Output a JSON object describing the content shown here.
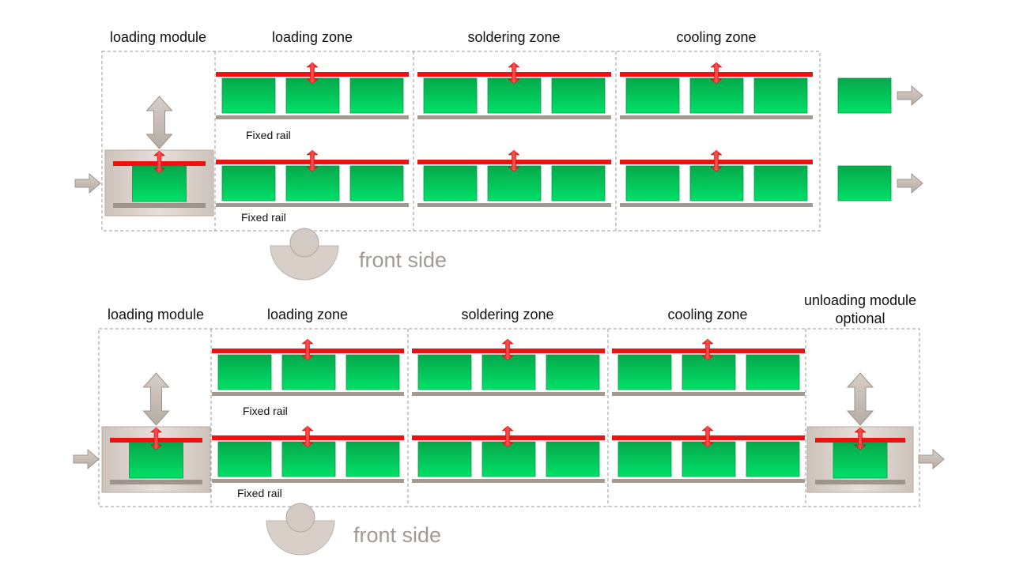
{
  "colors": {
    "pcb_green": "#00c957",
    "rail_red": "#ee1111",
    "fixed_rail_gray": "#a39a92",
    "module_gray": "#cfc6bf",
    "dashed_border": "#999999"
  },
  "icons": [
    "gray-double-arrow-icon",
    "red-double-arrow-icon",
    "gray-right-arrow-icon",
    "front-side-operator-icon"
  ],
  "diagram_top": {
    "labels": {
      "loading_module": "loading module",
      "loading_zone": "loading zone",
      "soldering_zone": "soldering zone",
      "cooling_zone": "cooling zone"
    },
    "fixed_rail_1": "Fixed rail",
    "fixed_rail_2": "Fixed rail",
    "front_side": "front side"
  },
  "diagram_bottom": {
    "labels": {
      "loading_module": "loading module",
      "loading_zone": "loading zone",
      "soldering_zone": "soldering zone",
      "cooling_zone": "cooling zone",
      "unloading_module": "unloading module",
      "unloading_optional": "optional"
    },
    "fixed_rail_1": "Fixed rail",
    "fixed_rail_2": "Fixed rail",
    "front_side": "front side"
  }
}
